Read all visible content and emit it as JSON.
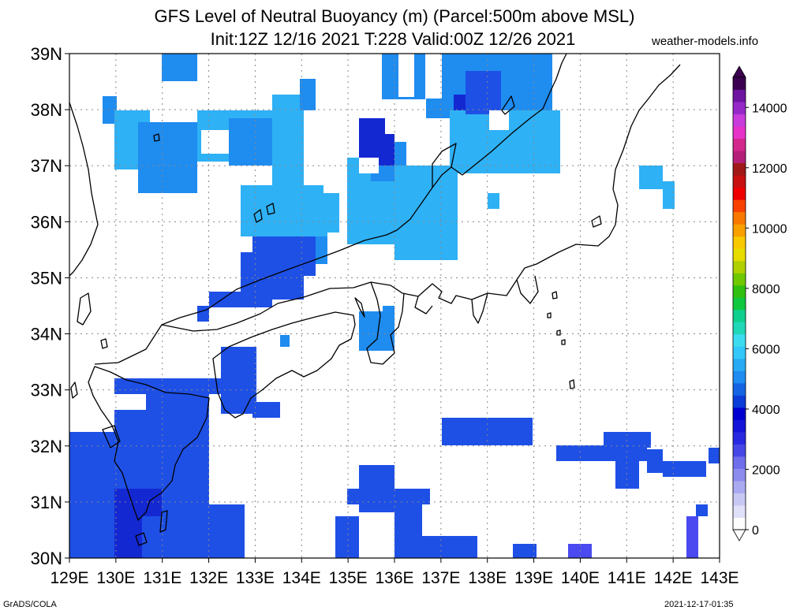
{
  "title_line1": "GFS Level of Neutral Buoyancy (m) (Parcel:500m above MSL)",
  "title_line2": "Init:12Z 12/16 2021 T:228 Valid:00Z 12/26 2021",
  "site": "weather-models.info",
  "footer_left": "GrADS/COLA",
  "footer_right": "2021-12-17-01:35",
  "map": {
    "lon_range": [
      129,
      143
    ],
    "lat_range": [
      30,
      39
    ],
    "lon_labels": [
      "129E",
      "130E",
      "131E",
      "132E",
      "133E",
      "134E",
      "135E",
      "136E",
      "137E",
      "138E",
      "139E",
      "140E",
      "141E",
      "142E",
      "143E"
    ],
    "lat_labels": [
      "30N",
      "31N",
      "32N",
      "33N",
      "34N",
      "35N",
      "36N",
      "37N",
      "38N",
      "39N"
    ]
  },
  "colorbar": {
    "labels": [
      "0",
      "2000",
      "4000",
      "6000",
      "8000",
      "10000",
      "12000",
      "14000"
    ],
    "colors": [
      "#fdfdfd",
      "#e0e0f8",
      "#c8c8f4",
      "#aaaaf0",
      "#8c8cee",
      "#6e6eec",
      "#4646e6",
      "#2828e0",
      "#1414d8",
      "#0000d0",
      "#0a3cd8",
      "#1464e4",
      "#1e8cf0",
      "#28aaf5",
      "#32c8fa",
      "#3cdcf0",
      "#20d8b8",
      "#10d090",
      "#10c840",
      "#30c010",
      "#70c800",
      "#b0d000",
      "#e6dc00",
      "#f8c800",
      "#f8a000",
      "#f87800",
      "#f84000",
      "#ee0000",
      "#c81010",
      "#a01818",
      "#b41e78",
      "#d2288c",
      "#e632c8",
      "#c83cdc",
      "#9628c8",
      "#6e14a0",
      "#3c0050"
    ]
  }
}
